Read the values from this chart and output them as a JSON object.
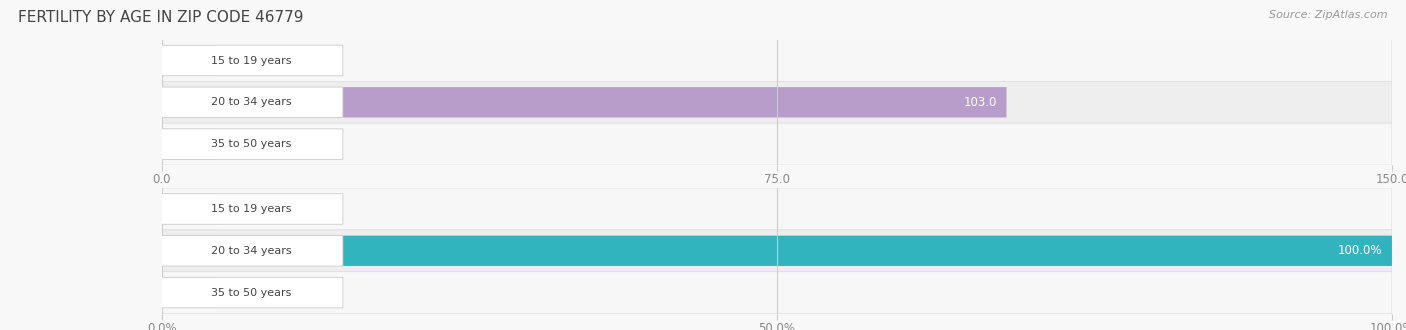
{
  "title": "FERTILITY BY AGE IN ZIP CODE 46779",
  "source": "Source: ZipAtlas.com",
  "top_chart": {
    "categories": [
      "15 to 19 years",
      "20 to 34 years",
      "35 to 50 years"
    ],
    "values": [
      0.0,
      103.0,
      0.0
    ],
    "bar_color": "#b89cca",
    "zero_bar_color": "#cbb8da",
    "xlim": [
      0,
      150
    ],
    "xticks": [
      0.0,
      75.0,
      150.0
    ]
  },
  "bottom_chart": {
    "categories": [
      "15 to 19 years",
      "20 to 34 years",
      "35 to 50 years"
    ],
    "values": [
      0.0,
      100.0,
      0.0
    ],
    "bar_color": "#31b4be",
    "zero_bar_color": "#7dd4da",
    "xlim": [
      0,
      100
    ],
    "xticks": [
      0.0,
      50.0,
      100.0
    ]
  },
  "label_fontsize": 8.5,
  "tick_fontsize": 8.5,
  "title_fontsize": 11,
  "source_fontsize": 8,
  "category_fontsize": 8.0,
  "bar_height": 0.72,
  "row_colors": [
    "#f7f7f7",
    "#eeeeee",
    "#f7f7f7"
  ],
  "row_border_color": "#dddddd",
  "label_pill_color": "#ffffff",
  "label_pill_border": "#cccccc"
}
